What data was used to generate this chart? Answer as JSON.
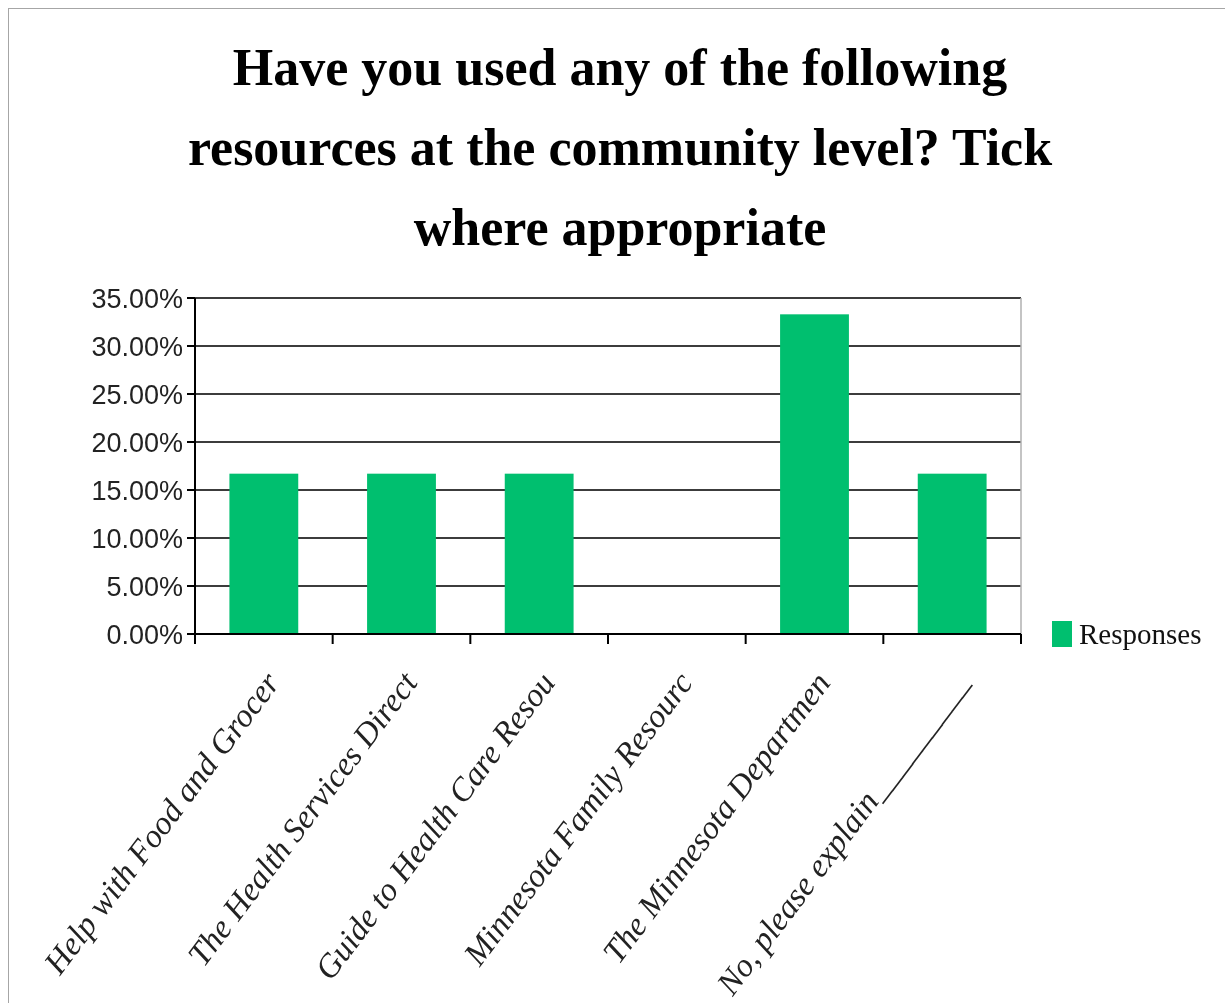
{
  "chart_data": {
    "type": "bar",
    "title": "Have you used any of the following resources at the community level? Tick where appropriate",
    "categories": [
      "Help with Food and Grocer",
      "The Health Services Direct",
      "Guide to Health Care Resou",
      "Minnesota Family Resourc",
      "The Minnesota Departmen",
      "No, please explain_________"
    ],
    "series": [
      {
        "name": "Responses",
        "color": "#00bf6f",
        "values": [
          16.7,
          16.7,
          16.7,
          0,
          33.3,
          16.7
        ]
      }
    ],
    "ylim": [
      0,
      35
    ],
    "yticks": [
      {
        "value": 0,
        "label": "0.00%"
      },
      {
        "value": 5,
        "label": "5.00%"
      },
      {
        "value": 10,
        "label": "10.00%"
      },
      {
        "value": 15,
        "label": "15.00%"
      },
      {
        "value": 20,
        "label": "20.00%"
      },
      {
        "value": 25,
        "label": "25.00%"
      },
      {
        "value": 30,
        "label": "30.00%"
      },
      {
        "value": 35,
        "label": "35.00%"
      }
    ],
    "grid": "y",
    "legend": "bottom right"
  }
}
